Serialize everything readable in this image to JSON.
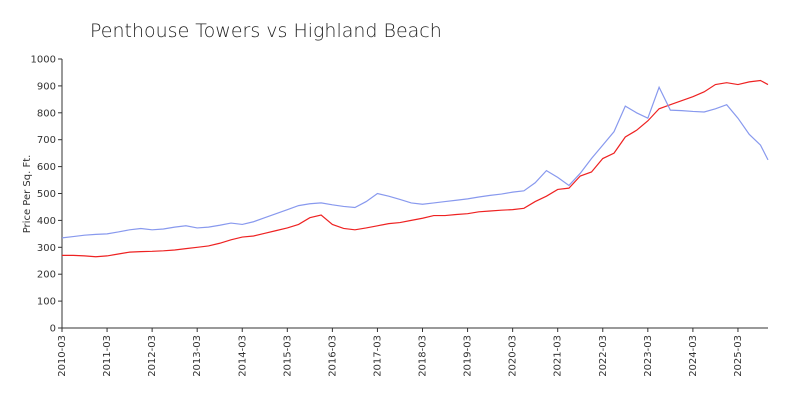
{
  "chart_data": {
    "type": "line",
    "title": "Penthouse Towers vs Highland Beach",
    "ylabel": "Price Per Sq. Ft.",
    "x": [
      "2010-03",
      "2010-06",
      "2010-09",
      "2010-12",
      "2011-03",
      "2011-06",
      "2011-09",
      "2011-12",
      "2012-03",
      "2012-06",
      "2012-09",
      "2012-12",
      "2013-03",
      "2013-06",
      "2013-09",
      "2013-12",
      "2014-03",
      "2014-06",
      "2014-09",
      "2014-12",
      "2015-03",
      "2015-06",
      "2015-09",
      "2015-12",
      "2016-03",
      "2016-06",
      "2016-09",
      "2016-12",
      "2017-03",
      "2017-06",
      "2017-09",
      "2017-12",
      "2018-03",
      "2018-06",
      "2018-09",
      "2018-12",
      "2019-03",
      "2019-06",
      "2019-09",
      "2019-12",
      "2020-03",
      "2020-06",
      "2020-09",
      "2020-12",
      "2021-03",
      "2021-06",
      "2021-09",
      "2021-12",
      "2022-03",
      "2022-06",
      "2022-09",
      "2022-12",
      "2023-03",
      "2023-06",
      "2023-09",
      "2023-12",
      "2024-03",
      "2024-06",
      "2024-09",
      "2024-12",
      "2025-03",
      "2025-06",
      "2025-09",
      "2025-11"
    ],
    "series": [
      {
        "color": "#ee2222",
        "values": [
          270,
          270,
          268,
          265,
          268,
          275,
          282,
          284,
          285,
          287,
          290,
          295,
          300,
          305,
          315,
          328,
          338,
          342,
          352,
          362,
          372,
          385,
          410,
          420,
          385,
          370,
          365,
          372,
          380,
          388,
          392,
          400,
          408,
          418,
          418,
          422,
          425,
          432,
          435,
          438,
          440,
          445,
          470,
          490,
          515,
          520,
          565,
          580,
          630,
          650,
          710,
          735,
          770,
          815,
          830,
          845,
          860,
          878,
          905,
          912,
          905,
          915,
          920,
          905
        ]
      },
      {
        "color": "#8899ee",
        "values": [
          335,
          340,
          345,
          348,
          350,
          357,
          365,
          370,
          365,
          368,
          375,
          380,
          372,
          375,
          382,
          390,
          385,
          395,
          410,
          425,
          440,
          455,
          462,
          465,
          458,
          452,
          448,
          470,
          500,
          490,
          478,
          465,
          460,
          465,
          470,
          475,
          480,
          487,
          493,
          498,
          505,
          510,
          540,
          585,
          560,
          530,
          575,
          630,
          680,
          730,
          825,
          800,
          780,
          895,
          810,
          808,
          805,
          803,
          815,
          830,
          780,
          720,
          680,
          625
        ]
      }
    ],
    "xticks": [
      "2010-03",
      "2011-03",
      "2012-03",
      "2013-03",
      "2014-03",
      "2015-03",
      "2016-03",
      "2017-03",
      "2018-03",
      "2019-03",
      "2020-03",
      "2021-03",
      "2022-03",
      "2023-03",
      "2024-03",
      "2025-03"
    ],
    "ylim": [
      0,
      1000
    ],
    "yticks": [
      0,
      100,
      200,
      300,
      400,
      500,
      600,
      700,
      800,
      900,
      1000
    ],
    "grid": false
  }
}
